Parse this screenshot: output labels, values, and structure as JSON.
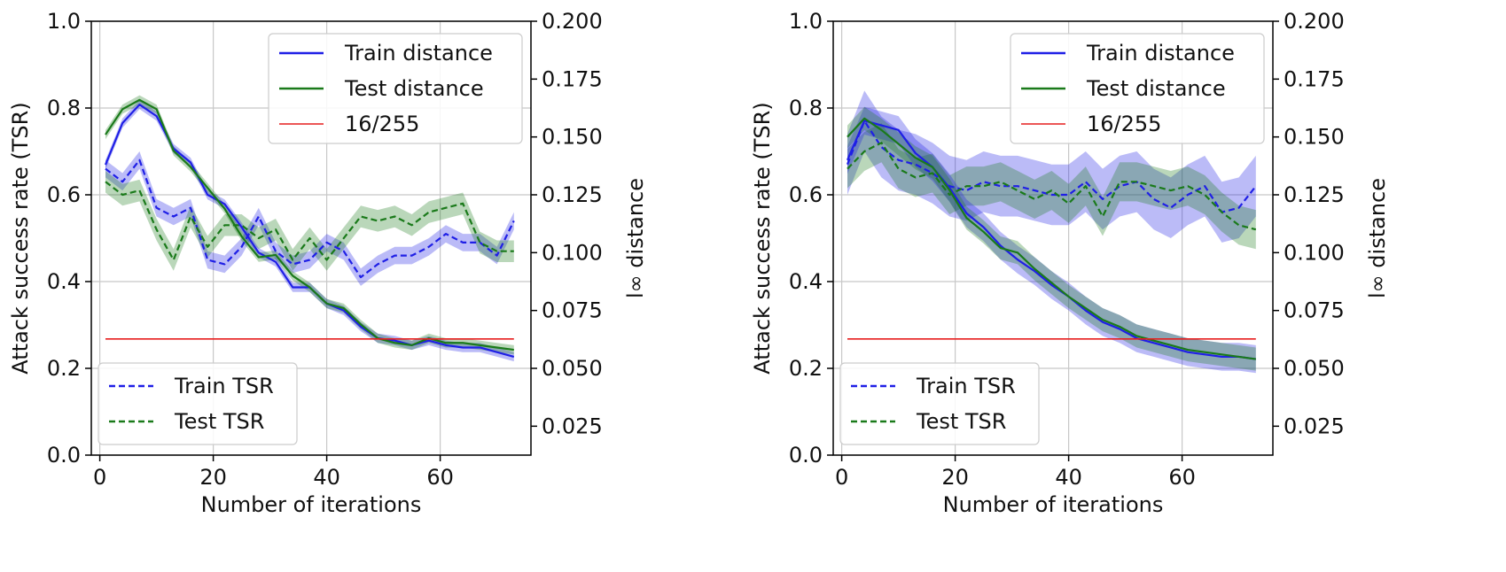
{
  "chart_data": [
    {
      "type": "line",
      "xlabel": "Number of iterations",
      "ylabel": "Attack success rate (TSR)",
      "y2label": "l∞ distance",
      "xlim": [
        -1.5,
        76
      ],
      "ylim": [
        0,
        1
      ],
      "y2lim": [
        0.0125,
        0.2
      ],
      "xticks": [
        "0",
        "20",
        "40",
        "60"
      ],
      "xtick_values": [
        0,
        20,
        40,
        60
      ],
      "yticks": [
        "0.0",
        "0.2",
        "0.4",
        "0.6",
        "0.8",
        "1.0"
      ],
      "ytick_values": [
        0,
        0.2,
        0.4,
        0.6,
        0.8,
        1.0
      ],
      "y2ticks": [
        "0.025",
        "0.050",
        "0.075",
        "0.100",
        "0.125",
        "0.150",
        "0.175",
        "0.200"
      ],
      "y2tick_values": [
        0.025,
        0.05,
        0.075,
        0.1,
        0.125,
        0.15,
        0.175,
        0.2
      ],
      "grid": true,
      "legend_distance": {
        "position": "top-right",
        "entries": [
          "Train distance",
          "Test distance",
          "16/255"
        ]
      },
      "legend_tsr": {
        "position": "bottom-left",
        "entries": [
          "Train TSR",
          "Test TSR"
        ]
      },
      "x": [
        1,
        4,
        7,
        10,
        13,
        16,
        19,
        22,
        25,
        28,
        31,
        34,
        37,
        40,
        43,
        46,
        49,
        52,
        55,
        58,
        61,
        64,
        67,
        70,
        73
      ],
      "series": [
        {
          "name": "Train TSR",
          "axis": "left",
          "style": "dashed",
          "color": "#1f1fe6",
          "values": [
            0.66,
            0.63,
            0.68,
            0.57,
            0.55,
            0.57,
            0.45,
            0.44,
            0.48,
            0.55,
            0.47,
            0.44,
            0.45,
            0.49,
            0.47,
            0.41,
            0.44,
            0.46,
            0.46,
            0.48,
            0.51,
            0.49,
            0.49,
            0.46,
            0.54
          ],
          "band": 0.02
        },
        {
          "name": "Test TSR",
          "axis": "left",
          "style": "dashed",
          "color": "#1a7a1a",
          "values": [
            0.63,
            0.6,
            0.61,
            0.52,
            0.45,
            0.55,
            0.48,
            0.53,
            0.53,
            0.5,
            0.52,
            0.45,
            0.5,
            0.45,
            0.5,
            0.55,
            0.54,
            0.55,
            0.53,
            0.56,
            0.57,
            0.58,
            0.49,
            0.47,
            0.47
          ],
          "band": 0.025
        },
        {
          "name": "Train distance",
          "axis": "right",
          "style": "solid",
          "color": "#1f1fe6",
          "values": [
            0.138,
            0.156,
            0.164,
            0.159,
            0.145,
            0.139,
            0.125,
            0.121,
            0.111,
            0.1,
            0.096,
            0.085,
            0.085,
            0.078,
            0.075,
            0.068,
            0.063,
            0.062,
            0.06,
            0.062,
            0.06,
            0.059,
            0.059,
            0.057,
            0.055
          ],
          "band": 0.002
        },
        {
          "name": "Test distance",
          "axis": "right",
          "style": "solid",
          "color": "#1a7a1a",
          "values": [
            0.151,
            0.162,
            0.166,
            0.162,
            0.144,
            0.137,
            0.128,
            0.119,
            0.107,
            0.098,
            0.099,
            0.09,
            0.085,
            0.078,
            0.076,
            0.069,
            0.063,
            0.061,
            0.06,
            0.063,
            0.061,
            0.061,
            0.06,
            0.059,
            0.058
          ],
          "band": 0.002
        },
        {
          "name": "16/255",
          "axis": "right",
          "style": "solid",
          "color": "#e61e1e",
          "values": [
            0.0627,
            0.0627,
            0.0627,
            0.0627,
            0.0627,
            0.0627,
            0.0627,
            0.0627,
            0.0627,
            0.0627,
            0.0627,
            0.0627,
            0.0627,
            0.0627,
            0.0627,
            0.0627,
            0.0627,
            0.0627,
            0.0627,
            0.0627,
            0.0627,
            0.0627,
            0.0627,
            0.0627,
            0.0627
          ]
        }
      ]
    },
    {
      "type": "line",
      "xlabel": "Number of iterations",
      "ylabel": "Attack success rate (TSR)",
      "y2label": "l∞ distance",
      "xlim": [
        -1.5,
        76
      ],
      "ylim": [
        0,
        1
      ],
      "y2lim": [
        0.0125,
        0.2
      ],
      "xticks": [
        "0",
        "20",
        "40",
        "60"
      ],
      "xtick_values": [
        0,
        20,
        40,
        60
      ],
      "yticks": [
        "0.0",
        "0.2",
        "0.4",
        "0.6",
        "0.8",
        "1.0"
      ],
      "ytick_values": [
        0,
        0.2,
        0.4,
        0.6,
        0.8,
        1.0
      ],
      "y2ticks": [
        "0.025",
        "0.050",
        "0.075",
        "0.100",
        "0.125",
        "0.150",
        "0.175",
        "0.200"
      ],
      "y2tick_values": [
        0.025,
        0.05,
        0.075,
        0.1,
        0.125,
        0.15,
        0.175,
        0.2
      ],
      "grid": true,
      "legend_distance": {
        "position": "top-right",
        "entries": [
          "Train distance",
          "Test distance",
          "16/255"
        ]
      },
      "legend_tsr": {
        "position": "bottom-left",
        "entries": [
          "Train TSR",
          "Test TSR"
        ]
      },
      "x": [
        1,
        4,
        7,
        10,
        13,
        16,
        19,
        22,
        25,
        28,
        31,
        34,
        37,
        40,
        43,
        46,
        49,
        52,
        55,
        58,
        61,
        64,
        67,
        70,
        73
      ],
      "series": [
        {
          "name": "Train TSR",
          "axis": "left",
          "style": "dashed",
          "color": "#1f1fe6",
          "values": [
            0.67,
            0.77,
            0.71,
            0.68,
            0.67,
            0.65,
            0.62,
            0.61,
            0.63,
            0.62,
            0.62,
            0.61,
            0.6,
            0.6,
            0.63,
            0.59,
            0.62,
            0.63,
            0.59,
            0.57,
            0.6,
            0.62,
            0.56,
            0.57,
            0.62
          ],
          "band": 0.07
        },
        {
          "name": "Test TSR",
          "axis": "left",
          "style": "dashed",
          "color": "#1a7a1a",
          "values": [
            0.66,
            0.7,
            0.72,
            0.66,
            0.64,
            0.65,
            0.6,
            0.62,
            0.62,
            0.63,
            0.61,
            0.59,
            0.61,
            0.58,
            0.62,
            0.55,
            0.63,
            0.63,
            0.62,
            0.61,
            0.62,
            0.6,
            0.56,
            0.53,
            0.52
          ],
          "band": 0.045
        },
        {
          "name": "Train distance",
          "axis": "right",
          "style": "solid",
          "color": "#1f1fe6",
          "values": [
            0.14,
            0.157,
            0.155,
            0.153,
            0.143,
            0.137,
            0.128,
            0.117,
            0.111,
            0.103,
            0.097,
            0.092,
            0.086,
            0.081,
            0.075,
            0.07,
            0.067,
            0.063,
            0.061,
            0.059,
            0.057,
            0.056,
            0.055,
            0.055,
            0.054
          ],
          "band": 0.006
        },
        {
          "name": "Test distance",
          "axis": "right",
          "style": "solid",
          "color": "#1a7a1a",
          "values": [
            0.15,
            0.158,
            0.153,
            0.147,
            0.141,
            0.137,
            0.127,
            0.115,
            0.109,
            0.102,
            0.1,
            0.093,
            0.087,
            0.081,
            0.076,
            0.071,
            0.068,
            0.064,
            0.062,
            0.06,
            0.058,
            0.057,
            0.056,
            0.055,
            0.054
          ],
          "band": 0.005
        },
        {
          "name": "16/255",
          "axis": "right",
          "style": "solid",
          "color": "#e61e1e",
          "values": [
            0.0627,
            0.0627,
            0.0627,
            0.0627,
            0.0627,
            0.0627,
            0.0627,
            0.0627,
            0.0627,
            0.0627,
            0.0627,
            0.0627,
            0.0627,
            0.0627,
            0.0627,
            0.0627,
            0.0627,
            0.0627,
            0.0627,
            0.0627,
            0.0627,
            0.0627,
            0.0627,
            0.0627,
            0.0627
          ]
        }
      ]
    }
  ]
}
